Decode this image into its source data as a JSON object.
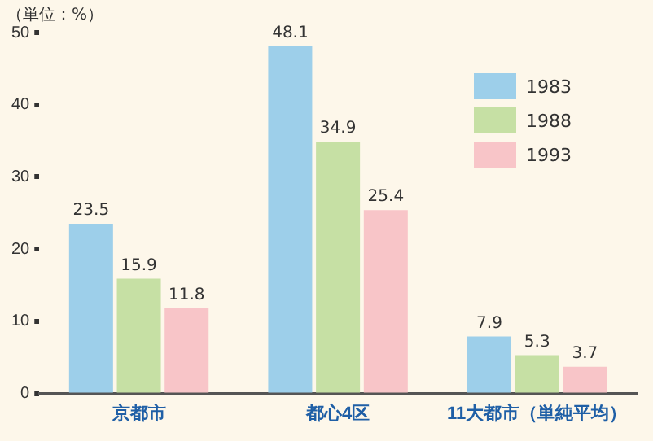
{
  "chart_data": {
    "type": "bar",
    "ylabel": "（単位：%）",
    "categories": [
      "京都市",
      "都心4区",
      "11大都市（単純平均）"
    ],
    "series": [
      {
        "name": "1983",
        "color": "#9dcfea",
        "values": [
          23.5,
          48.1,
          7.9
        ]
      },
      {
        "name": "1988",
        "color": "#c6e0a4",
        "values": [
          15.9,
          34.9,
          5.3
        ]
      },
      {
        "name": "1993",
        "color": "#f8c5c8",
        "values": [
          11.8,
          25.4,
          3.7
        ]
      }
    ],
    "ylim": [
      0,
      50
    ],
    "yticks": [
      0,
      10,
      20,
      30,
      40,
      50
    ],
    "data_labels": true,
    "legend": "top right"
  }
}
